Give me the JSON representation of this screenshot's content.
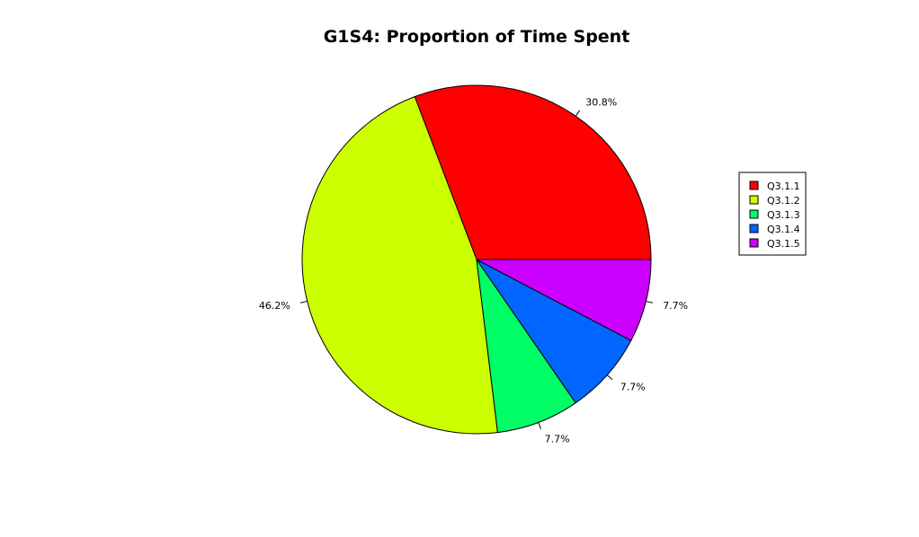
{
  "chart_data": {
    "type": "pie",
    "title": "G1S4: Proportion of Time Spent",
    "slices": [
      {
        "label": "Q3.1.1",
        "value": 30.8,
        "display": "30.8%",
        "color": "#FF0000"
      },
      {
        "label": "Q3.1.2",
        "value": 46.2,
        "display": "46.2%",
        "color": "#CCFF00"
      },
      {
        "label": "Q3.1.3",
        "value": 7.7,
        "display": "7.7%",
        "color": "#00FF66"
      },
      {
        "label": "Q3.1.4",
        "value": 7.7,
        "display": "7.7%",
        "color": "#0066FF"
      },
      {
        "label": "Q3.1.5",
        "value": 7.7,
        "display": "7.7%",
        "color": "#CC00FF"
      }
    ],
    "legend": {
      "position": "right",
      "entries": [
        "Q3.1.1",
        "Q3.1.2",
        "Q3.1.3",
        "Q3.1.4",
        "Q3.1.5"
      ]
    },
    "start": "3 o'clock",
    "direction": "counterclockwise"
  }
}
